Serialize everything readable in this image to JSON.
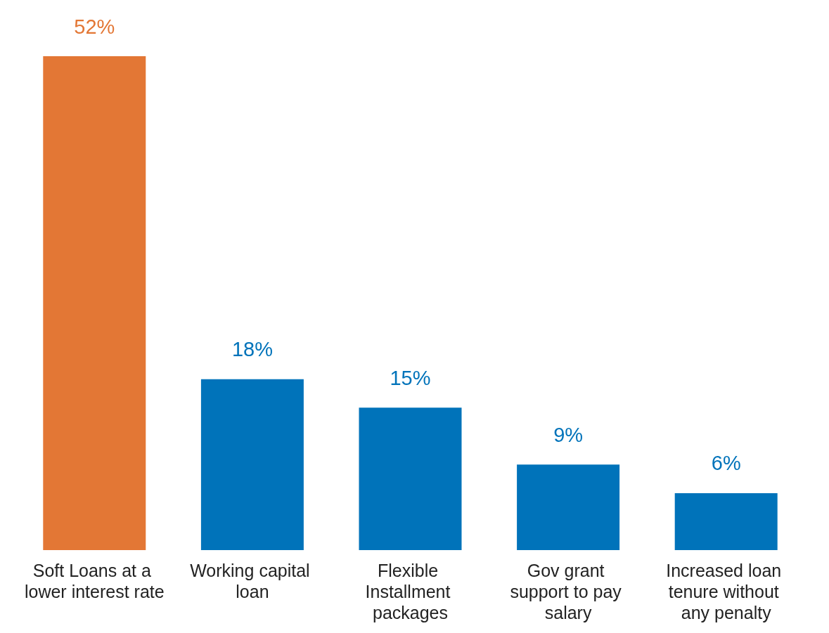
{
  "chart_data": {
    "type": "bar",
    "categories": [
      "Soft Loans at a lower interest rate",
      "Working capital loan",
      "Flexible Installment packages",
      "Gov grant support to pay salary",
      "Increased loan tenure without any penalty"
    ],
    "values": [
      52,
      18,
      15,
      9,
      6
    ],
    "colors": [
      "#e37735",
      "#0073ba",
      "#0073ba",
      "#0073ba",
      "#0073ba"
    ],
    "value_labels": [
      "52%",
      "18%",
      "15%",
      "9%",
      "6%"
    ]
  }
}
